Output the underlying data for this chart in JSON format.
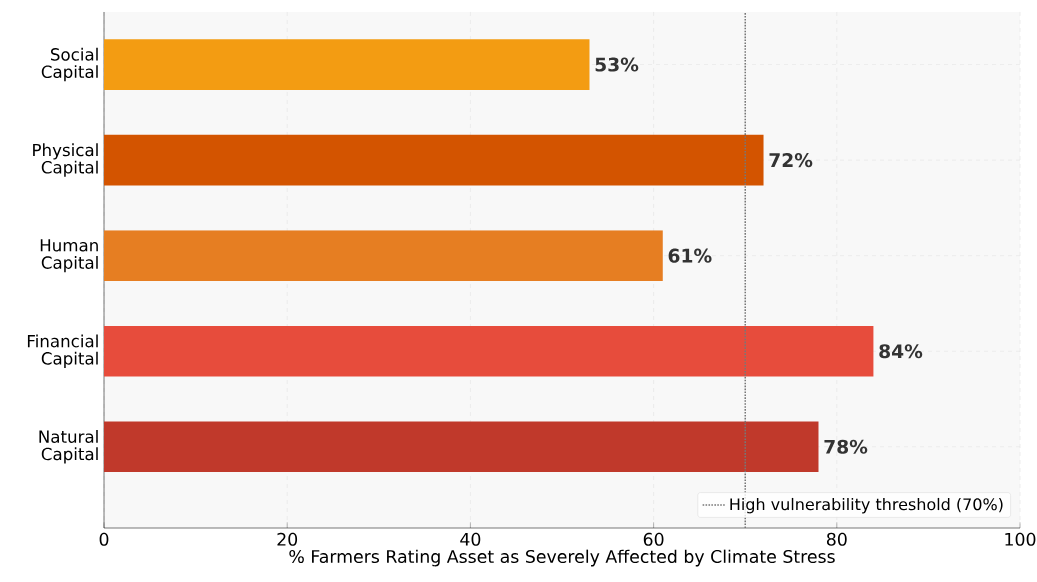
{
  "chart_data": {
    "type": "bar",
    "orientation": "horizontal",
    "xlabel": "% Farmers Rating Asset as Severely Affected by Climate Stress",
    "categories": [
      "Social\nCapital",
      "Physical\nCapital",
      "Human\nCapital",
      "Financial\nCapital",
      "Natural\nCapital"
    ],
    "values": [
      53,
      72,
      61,
      84,
      78
    ],
    "colors": [
      "#f39c12",
      "#d35400",
      "#e67e22",
      "#e74c3c",
      "#c0392b"
    ],
    "value_labels": [
      "53%",
      "72%",
      "61%",
      "84%",
      "78%"
    ],
    "xlim": [
      0,
      100
    ],
    "xticks": [
      0,
      20,
      40,
      60,
      80,
      100
    ],
    "grid": true,
    "legend": "bottom right",
    "ref_lines": [
      {
        "axis": "x",
        "value": 70,
        "label": "High vulnerability threshold (70%)",
        "color": "#777777",
        "line_style": "dotted"
      }
    ]
  }
}
